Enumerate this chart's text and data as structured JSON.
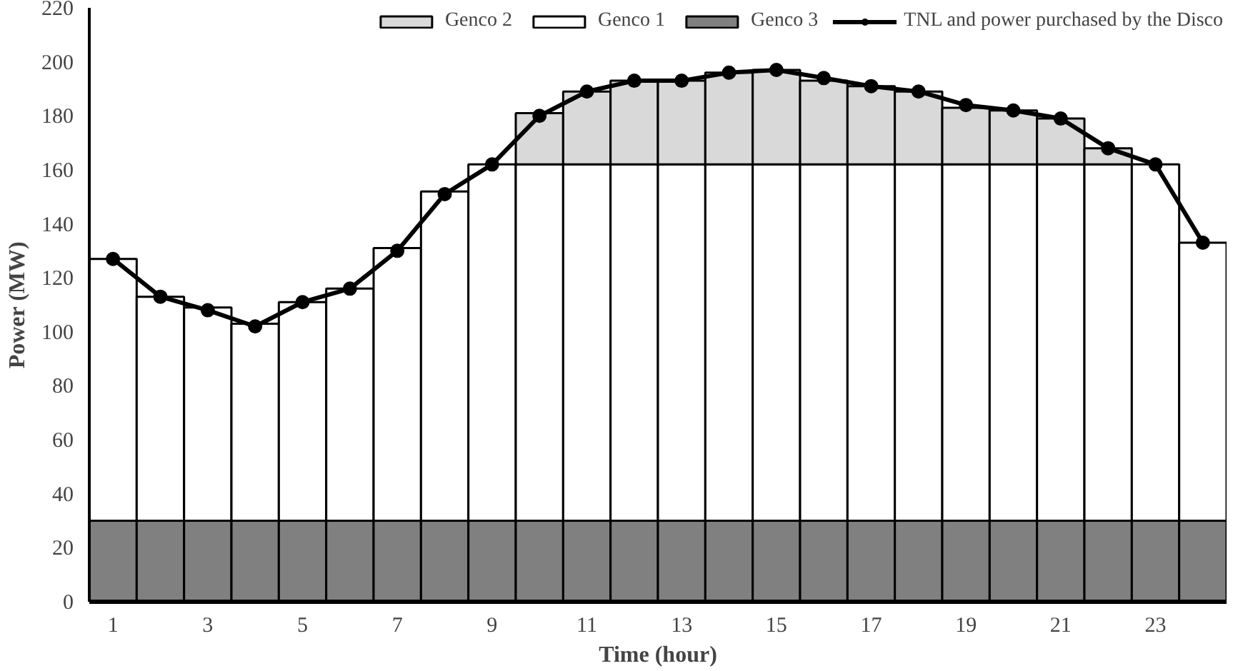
{
  "chart_data": {
    "type": "bar",
    "stacked": true,
    "xlabel": "Time (hour)",
    "ylabel": "Power (MW)",
    "x": [
      1,
      2,
      3,
      4,
      5,
      6,
      7,
      8,
      9,
      10,
      11,
      12,
      13,
      14,
      15,
      16,
      17,
      18,
      19,
      20,
      21,
      22,
      23,
      24
    ],
    "xlim": [
      0.5,
      24.5
    ],
    "xticks": [
      1,
      3,
      5,
      7,
      9,
      11,
      13,
      15,
      17,
      19,
      21,
      23
    ],
    "ylim": [
      0,
      220
    ],
    "yticks": [
      0,
      20,
      40,
      60,
      80,
      100,
      120,
      140,
      160,
      180,
      200,
      220
    ],
    "grid": false,
    "legend": "top",
    "series": [
      {
        "name": "Genco 3",
        "color": "#808080",
        "values": [
          30,
          30,
          30,
          30,
          30,
          30,
          30,
          30,
          30,
          30,
          30,
          30,
          30,
          30,
          30,
          30,
          30,
          30,
          30,
          30,
          30,
          30,
          30,
          30
        ]
      },
      {
        "name": "Genco 1",
        "color": "#ffffff",
        "values": [
          97,
          83,
          79,
          73,
          81,
          86,
          101,
          122,
          132,
          132,
          132,
          132,
          132,
          132,
          132,
          132,
          132,
          132,
          132,
          132,
          132,
          132,
          132,
          103
        ]
      },
      {
        "name": "Genco 2",
        "color": "#d9d9d9",
        "values": [
          null,
          null,
          null,
          null,
          null,
          null,
          null,
          null,
          null,
          19,
          27,
          31,
          31,
          34,
          35,
          31,
          29,
          27,
          21,
          20,
          17,
          6,
          null,
          null
        ]
      },
      {
        "name": "TNL and power purchased by the Disco",
        "type": "line",
        "color": "#000000",
        "marker": "circle",
        "values": [
          127,
          113,
          108,
          102,
          111,
          116,
          130,
          151,
          162,
          180,
          189,
          193,
          193,
          196,
          197,
          194,
          191,
          189,
          184,
          182,
          179,
          168,
          162,
          133
        ]
      }
    ]
  }
}
